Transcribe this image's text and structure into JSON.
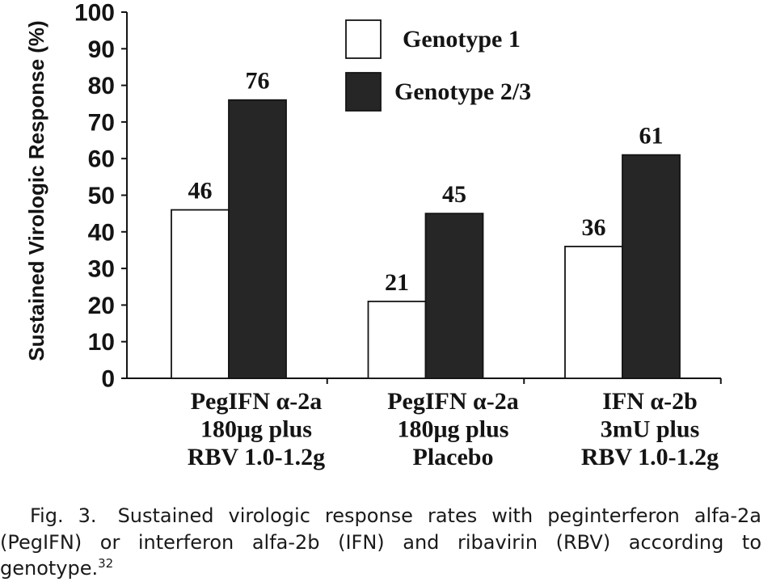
{
  "chart_data": {
    "type": "bar",
    "categories": [
      [
        "PegIFN α-2a",
        "180μg plus",
        "RBV 1.0-1.2g"
      ],
      [
        "PegIFN α-2a",
        "180μg plus",
        "Placebo"
      ],
      [
        "IFN α-2b",
        "3mU plus",
        "RBV 1.0-1.2g"
      ]
    ],
    "series": [
      {
        "name": "Genotype 1",
        "values": [
          46,
          21,
          36
        ],
        "color": "#ffffff"
      },
      {
        "name": "Genotype 2/3",
        "values": [
          76,
          45,
          61
        ],
        "color": "#262626"
      }
    ],
    "ylabel": "Sustained Virologic Response (%)",
    "ylim": [
      0,
      100
    ],
    "yticks": [
      0,
      10,
      20,
      30,
      40,
      50,
      60,
      70,
      80,
      90,
      100
    ],
    "data_labels": true,
    "legend": "top-center",
    "grid": false
  },
  "caption": {
    "label": "Fig. 3.",
    "lines": [
      "Sustained virologic response rates with peginterferon alfa-2a",
      "(PegIFN) or interferon alfa-2b (IFN) and ribavirin (RBV) according to",
      "genotype."
    ],
    "reference": "32"
  }
}
